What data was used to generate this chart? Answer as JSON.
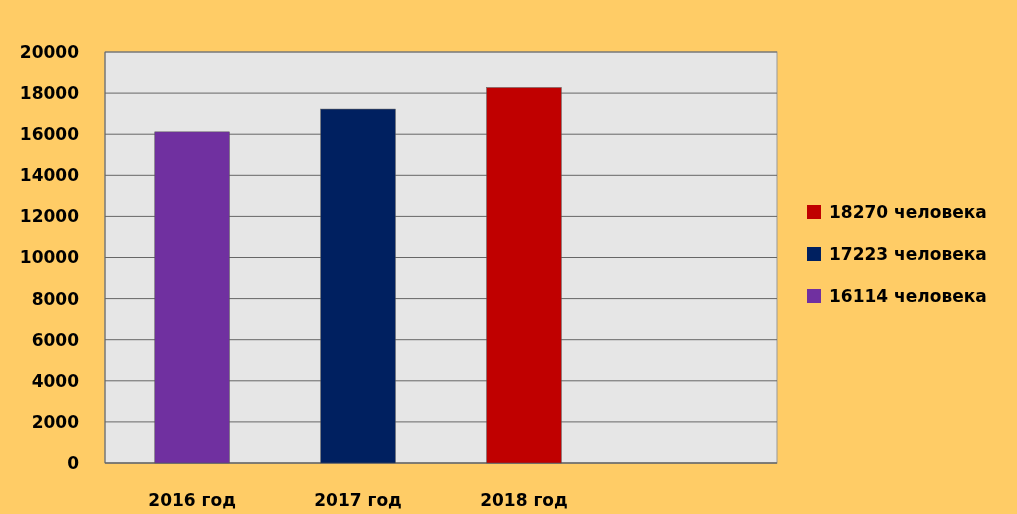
{
  "chart_data": {
    "type": "bar",
    "categories": [
      "2016 год",
      "2017 год",
      "2018 год",
      null
    ],
    "stacked": true,
    "series": [
      {
        "name": "18270 человека",
        "color": "#c00000",
        "values": [
          null,
          null,
          18270,
          null
        ]
      },
      {
        "name": "17223 человека",
        "color": "#002060",
        "values": [
          null,
          17223,
          null,
          null
        ]
      },
      {
        "name": "16114 человека",
        "color": "#7030a0",
        "values": [
          16114,
          null,
          null,
          null
        ]
      }
    ],
    "ylim": [
      0,
      20000
    ],
    "yticks": [
      0,
      2000,
      4000,
      6000,
      8000,
      10000,
      12000,
      14000,
      16000,
      18000,
      20000
    ],
    "grid": "y",
    "legend": "right"
  }
}
